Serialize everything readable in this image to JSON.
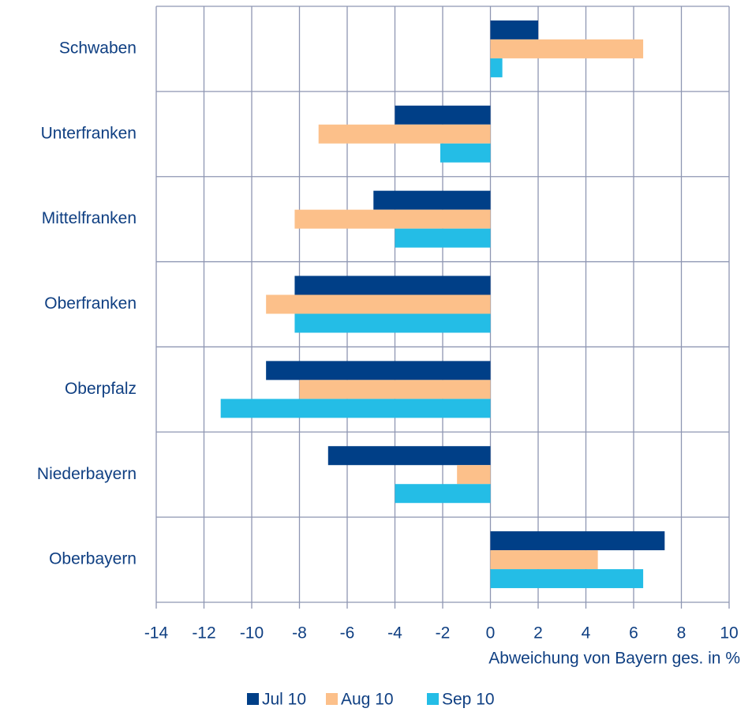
{
  "chart_data": {
    "type": "hbar",
    "x_label": "Abweichung von Bayern ges. in %",
    "categories": [
      "Schwaben",
      "Unterfranken",
      "Mittelfranken",
      "Oberfranken",
      "Oberpfalz",
      "Niederbayern",
      "Oberbayern"
    ],
    "series": [
      {
        "name": "Jul 10",
        "color": "#003f87",
        "values": [
          2.0,
          -4.0,
          -4.9,
          -8.2,
          -9.4,
          -6.8,
          7.3
        ]
      },
      {
        "name": "Aug 10",
        "color": "#fcc08a",
        "values": [
          6.4,
          -7.2,
          -8.2,
          -9.4,
          -8.0,
          -1.4,
          4.5
        ]
      },
      {
        "name": "Sep 10",
        "color": "#24bde6",
        "values": [
          0.5,
          -2.1,
          -4.0,
          -8.2,
          -11.3,
          -4.0,
          6.4
        ]
      }
    ],
    "xlim": [
      -14,
      10
    ],
    "xticks": [
      -14,
      -12,
      -10,
      -8,
      -6,
      -4,
      -2,
      0,
      2,
      4,
      6,
      8,
      10
    ],
    "grid": true,
    "legend": "bottom"
  }
}
